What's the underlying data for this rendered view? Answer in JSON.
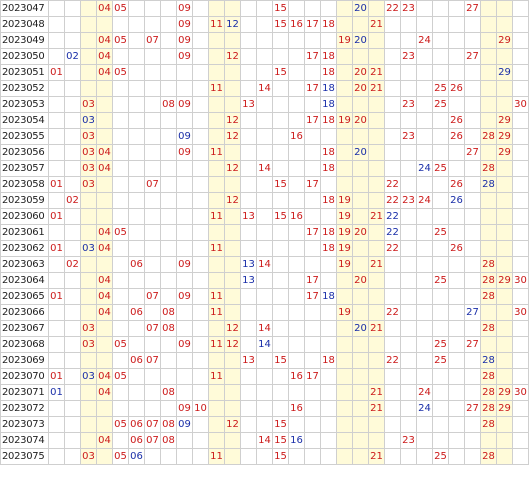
{
  "colors": {
    "red_ball": "#cc1a1a",
    "blue_ball": "#1a2ea8",
    "shade": "#fffbd9",
    "grid_line": "#cfcfcf"
  },
  "shaded_columns": [
    3,
    4,
    11,
    12,
    19,
    20,
    21,
    28,
    29
  ],
  "rows": [
    {
      "issue": "2023047",
      "cells": [
        {
          "n": "04",
          "c": "red"
        },
        {
          "n": "05",
          "c": "red"
        },
        {
          "n": "09",
          "c": "red"
        },
        {
          "n": "15",
          "c": "red"
        },
        {
          "n": "20",
          "c": "blue"
        },
        {
          "n": "22",
          "c": "red"
        },
        {
          "n": "23",
          "c": "red"
        },
        {
          "n": "27",
          "c": "red"
        }
      ]
    },
    {
      "issue": "2023048",
      "cells": [
        {
          "n": "09",
          "c": "red"
        },
        {
          "n": "11",
          "c": "red"
        },
        {
          "n": "12",
          "c": "blue"
        },
        {
          "n": "15",
          "c": "red"
        },
        {
          "n": "16",
          "c": "red"
        },
        {
          "n": "17",
          "c": "red"
        },
        {
          "n": "18",
          "c": "red"
        },
        {
          "n": "21",
          "c": "red"
        }
      ]
    },
    {
      "issue": "2023049",
      "cells": [
        {
          "n": "04",
          "c": "red"
        },
        {
          "n": "05",
          "c": "red"
        },
        {
          "n": "07",
          "c": "red"
        },
        {
          "n": "09",
          "c": "red"
        },
        {
          "n": "19",
          "c": "red"
        },
        {
          "n": "20",
          "c": "blue"
        },
        {
          "n": "24",
          "c": "red"
        },
        {
          "n": "29",
          "c": "red"
        }
      ]
    },
    {
      "issue": "2023050",
      "cells": [
        {
          "n": "02",
          "c": "blue"
        },
        {
          "n": "04",
          "c": "red"
        },
        {
          "n": "09",
          "c": "red"
        },
        {
          "n": "12",
          "c": "red"
        },
        {
          "n": "17",
          "c": "red"
        },
        {
          "n": "18",
          "c": "red"
        },
        {
          "n": "23",
          "c": "red"
        },
        {
          "n": "27",
          "c": "red"
        }
      ]
    },
    {
      "issue": "2023051",
      "cells": [
        {
          "n": "01",
          "c": "red"
        },
        {
          "n": "04",
          "c": "red"
        },
        {
          "n": "05",
          "c": "red"
        },
        {
          "n": "15",
          "c": "red"
        },
        {
          "n": "18",
          "c": "red"
        },
        {
          "n": "20",
          "c": "red"
        },
        {
          "n": "21",
          "c": "red"
        },
        {
          "n": "29",
          "c": "blue"
        }
      ]
    },
    {
      "issue": "2023052",
      "cells": [
        {
          "n": "11",
          "c": "red"
        },
        {
          "n": "14",
          "c": "red"
        },
        {
          "n": "17",
          "c": "red"
        },
        {
          "n": "18",
          "c": "blue"
        },
        {
          "n": "20",
          "c": "red"
        },
        {
          "n": "21",
          "c": "red"
        },
        {
          "n": "25",
          "c": "red"
        },
        {
          "n": "26",
          "c": "red"
        }
      ]
    },
    {
      "issue": "2023053",
      "cells": [
        {
          "n": "03",
          "c": "red"
        },
        {
          "n": "08",
          "c": "red"
        },
        {
          "n": "09",
          "c": "red"
        },
        {
          "n": "13",
          "c": "red"
        },
        {
          "n": "18",
          "c": "blue"
        },
        {
          "n": "23",
          "c": "red"
        },
        {
          "n": "25",
          "c": "red"
        },
        {
          "n": "30",
          "c": "red"
        }
      ]
    },
    {
      "issue": "2023054",
      "cells": [
        {
          "n": "03",
          "c": "blue"
        },
        {
          "n": "12",
          "c": "red"
        },
        {
          "n": "17",
          "c": "red"
        },
        {
          "n": "18",
          "c": "red"
        },
        {
          "n": "19",
          "c": "red"
        },
        {
          "n": "20",
          "c": "red"
        },
        {
          "n": "26",
          "c": "red"
        },
        {
          "n": "29",
          "c": "red"
        }
      ]
    },
    {
      "issue": "2023055",
      "cells": [
        {
          "n": "03",
          "c": "red"
        },
        {
          "n": "09",
          "c": "blue"
        },
        {
          "n": "12",
          "c": "red"
        },
        {
          "n": "16",
          "c": "red"
        },
        {
          "n": "23",
          "c": "red"
        },
        {
          "n": "26",
          "c": "red"
        },
        {
          "n": "28",
          "c": "red"
        },
        {
          "n": "29",
          "c": "red"
        }
      ]
    },
    {
      "issue": "2023056",
      "cells": [
        {
          "n": "03",
          "c": "red"
        },
        {
          "n": "04",
          "c": "red"
        },
        {
          "n": "09",
          "c": "red"
        },
        {
          "n": "11",
          "c": "red"
        },
        {
          "n": "18",
          "c": "red"
        },
        {
          "n": "20",
          "c": "blue"
        },
        {
          "n": "27",
          "c": "red"
        },
        {
          "n": "29",
          "c": "red"
        }
      ]
    },
    {
      "issue": "2023057",
      "cells": [
        {
          "n": "03",
          "c": "red"
        },
        {
          "n": "04",
          "c": "red"
        },
        {
          "n": "12",
          "c": "red"
        },
        {
          "n": "14",
          "c": "red"
        },
        {
          "n": "18",
          "c": "red"
        },
        {
          "n": "24",
          "c": "blue"
        },
        {
          "n": "25",
          "c": "red"
        },
        {
          "n": "28",
          "c": "red"
        }
      ]
    },
    {
      "issue": "2023058",
      "cells": [
        {
          "n": "01",
          "c": "red"
        },
        {
          "n": "03",
          "c": "red"
        },
        {
          "n": "07",
          "c": "red"
        },
        {
          "n": "15",
          "c": "red"
        },
        {
          "n": "17",
          "c": "red"
        },
        {
          "n": "22",
          "c": "red"
        },
        {
          "n": "26",
          "c": "red"
        },
        {
          "n": "28",
          "c": "blue"
        }
      ]
    },
    {
      "issue": "2023059",
      "cells": [
        {
          "n": "02",
          "c": "red"
        },
        {
          "n": "12",
          "c": "red"
        },
        {
          "n": "18",
          "c": "red"
        },
        {
          "n": "19",
          "c": "red"
        },
        {
          "n": "22",
          "c": "red"
        },
        {
          "n": "23",
          "c": "red"
        },
        {
          "n": "24",
          "c": "red"
        },
        {
          "n": "26",
          "c": "blue"
        }
      ]
    },
    {
      "issue": "2023060",
      "cells": [
        {
          "n": "01",
          "c": "red"
        },
        {
          "n": "11",
          "c": "red"
        },
        {
          "n": "13",
          "c": "red"
        },
        {
          "n": "15",
          "c": "red"
        },
        {
          "n": "16",
          "c": "red"
        },
        {
          "n": "19",
          "c": "red"
        },
        {
          "n": "21",
          "c": "red"
        },
        {
          "n": "22",
          "c": "blue"
        }
      ]
    },
    {
      "issue": "2023061",
      "cells": [
        {
          "n": "04",
          "c": "red"
        },
        {
          "n": "05",
          "c": "red"
        },
        {
          "n": "17",
          "c": "red"
        },
        {
          "n": "18",
          "c": "red"
        },
        {
          "n": "19",
          "c": "red"
        },
        {
          "n": "20",
          "c": "red"
        },
        {
          "n": "22",
          "c": "blue"
        },
        {
          "n": "25",
          "c": "red"
        }
      ]
    },
    {
      "issue": "2023062",
      "cells": [
        {
          "n": "01",
          "c": "red"
        },
        {
          "n": "03",
          "c": "blue"
        },
        {
          "n": "04",
          "c": "red"
        },
        {
          "n": "11",
          "c": "red"
        },
        {
          "n": "18",
          "c": "red"
        },
        {
          "n": "19",
          "c": "red"
        },
        {
          "n": "22",
          "c": "red"
        },
        {
          "n": "26",
          "c": "red"
        }
      ]
    },
    {
      "issue": "2023063",
      "cells": [
        {
          "n": "02",
          "c": "red"
        },
        {
          "n": "06",
          "c": "red"
        },
        {
          "n": "09",
          "c": "red"
        },
        {
          "n": "13",
          "c": "blue"
        },
        {
          "n": "14",
          "c": "red"
        },
        {
          "n": "19",
          "c": "red"
        },
        {
          "n": "21",
          "c": "red"
        },
        {
          "n": "28",
          "c": "red"
        }
      ]
    },
    {
      "issue": "2023064",
      "cells": [
        {
          "n": "04",
          "c": "red"
        },
        {
          "n": "13",
          "c": "blue"
        },
        {
          "n": "17",
          "c": "red"
        },
        {
          "n": "20",
          "c": "red"
        },
        {
          "n": "25",
          "c": "red"
        },
        {
          "n": "28",
          "c": "red"
        },
        {
          "n": "29",
          "c": "red"
        },
        {
          "n": "30",
          "c": "red"
        }
      ]
    },
    {
      "issue": "2023065",
      "cells": [
        {
          "n": "01",
          "c": "red"
        },
        {
          "n": "04",
          "c": "red"
        },
        {
          "n": "07",
          "c": "red"
        },
        {
          "n": "09",
          "c": "red"
        },
        {
          "n": "11",
          "c": "red"
        },
        {
          "n": "17",
          "c": "red"
        },
        {
          "n": "18",
          "c": "blue"
        },
        {
          "n": "28",
          "c": "red"
        }
      ]
    },
    {
      "issue": "2023066",
      "cells": [
        {
          "n": "04",
          "c": "red"
        },
        {
          "n": "06",
          "c": "red"
        },
        {
          "n": "08",
          "c": "red"
        },
        {
          "n": "11",
          "c": "red"
        },
        {
          "n": "19",
          "c": "red"
        },
        {
          "n": "22",
          "c": "red"
        },
        {
          "n": "27",
          "c": "blue"
        },
        {
          "n": "30",
          "c": "red"
        }
      ]
    },
    {
      "issue": "2023067",
      "cells": [
        {
          "n": "03",
          "c": "red"
        },
        {
          "n": "07",
          "c": "red"
        },
        {
          "n": "08",
          "c": "red"
        },
        {
          "n": "12",
          "c": "red"
        },
        {
          "n": "14",
          "c": "red"
        },
        {
          "n": "20",
          "c": "blue"
        },
        {
          "n": "21",
          "c": "red"
        },
        {
          "n": "28",
          "c": "red"
        }
      ]
    },
    {
      "issue": "2023068",
      "cells": [
        {
          "n": "03",
          "c": "red"
        },
        {
          "n": "05",
          "c": "red"
        },
        {
          "n": "09",
          "c": "red"
        },
        {
          "n": "11",
          "c": "red"
        },
        {
          "n": "12",
          "c": "red"
        },
        {
          "n": "14",
          "c": "blue"
        },
        {
          "n": "25",
          "c": "red"
        },
        {
          "n": "27",
          "c": "red"
        }
      ]
    },
    {
      "issue": "2023069",
      "cells": [
        {
          "n": "06",
          "c": "red"
        },
        {
          "n": "07",
          "c": "red"
        },
        {
          "n": "13",
          "c": "red"
        },
        {
          "n": "15",
          "c": "red"
        },
        {
          "n": "18",
          "c": "red"
        },
        {
          "n": "22",
          "c": "red"
        },
        {
          "n": "25",
          "c": "red"
        },
        {
          "n": "28",
          "c": "blue"
        }
      ]
    },
    {
      "issue": "2023070",
      "cells": [
        {
          "n": "01",
          "c": "red"
        },
        {
          "n": "03",
          "c": "blue"
        },
        {
          "n": "04",
          "c": "red"
        },
        {
          "n": "05",
          "c": "red"
        },
        {
          "n": "11",
          "c": "red"
        },
        {
          "n": "16",
          "c": "red"
        },
        {
          "n": "17",
          "c": "red"
        },
        {
          "n": "28",
          "c": "red"
        }
      ]
    },
    {
      "issue": "2023071",
      "cells": [
        {
          "n": "01",
          "c": "blue"
        },
        {
          "n": "04",
          "c": "red"
        },
        {
          "n": "08",
          "c": "red"
        },
        {
          "n": "21",
          "c": "red"
        },
        {
          "n": "24",
          "c": "red"
        },
        {
          "n": "28",
          "c": "red"
        },
        {
          "n": "29",
          "c": "red"
        },
        {
          "n": "30",
          "c": "red"
        }
      ]
    },
    {
      "issue": "2023072",
      "cells": [
        {
          "n": "09",
          "c": "red"
        },
        {
          "n": "10",
          "c": "red"
        },
        {
          "n": "16",
          "c": "red"
        },
        {
          "n": "21",
          "c": "red"
        },
        {
          "n": "24",
          "c": "blue"
        },
        {
          "n": "27",
          "c": "red"
        },
        {
          "n": "28",
          "c": "red"
        },
        {
          "n": "29",
          "c": "red"
        }
      ]
    },
    {
      "issue": "2023073",
      "cells": [
        {
          "n": "05",
          "c": "red"
        },
        {
          "n": "06",
          "c": "red"
        },
        {
          "n": "07",
          "c": "red"
        },
        {
          "n": "08",
          "c": "red"
        },
        {
          "n": "09",
          "c": "blue"
        },
        {
          "n": "12",
          "c": "red"
        },
        {
          "n": "15",
          "c": "red"
        },
        {
          "n": "28",
          "c": "red"
        }
      ]
    },
    {
      "issue": "2023074",
      "cells": [
        {
          "n": "04",
          "c": "red"
        },
        {
          "n": "06",
          "c": "red"
        },
        {
          "n": "07",
          "c": "red"
        },
        {
          "n": "08",
          "c": "red"
        },
        {
          "n": "14",
          "c": "red"
        },
        {
          "n": "15",
          "c": "red"
        },
        {
          "n": "16",
          "c": "blue"
        },
        {
          "n": "23",
          "c": "red"
        }
      ]
    },
    {
      "issue": "2023075",
      "cells": [
        {
          "n": "03",
          "c": "red"
        },
        {
          "n": "05",
          "c": "red"
        },
        {
          "n": "06",
          "c": "blue"
        },
        {
          "n": "11",
          "c": "red"
        },
        {
          "n": "15",
          "c": "red"
        },
        {
          "n": "21",
          "c": "red"
        },
        {
          "n": "25",
          "c": "red"
        },
        {
          "n": "28",
          "c": "red"
        }
      ]
    }
  ]
}
